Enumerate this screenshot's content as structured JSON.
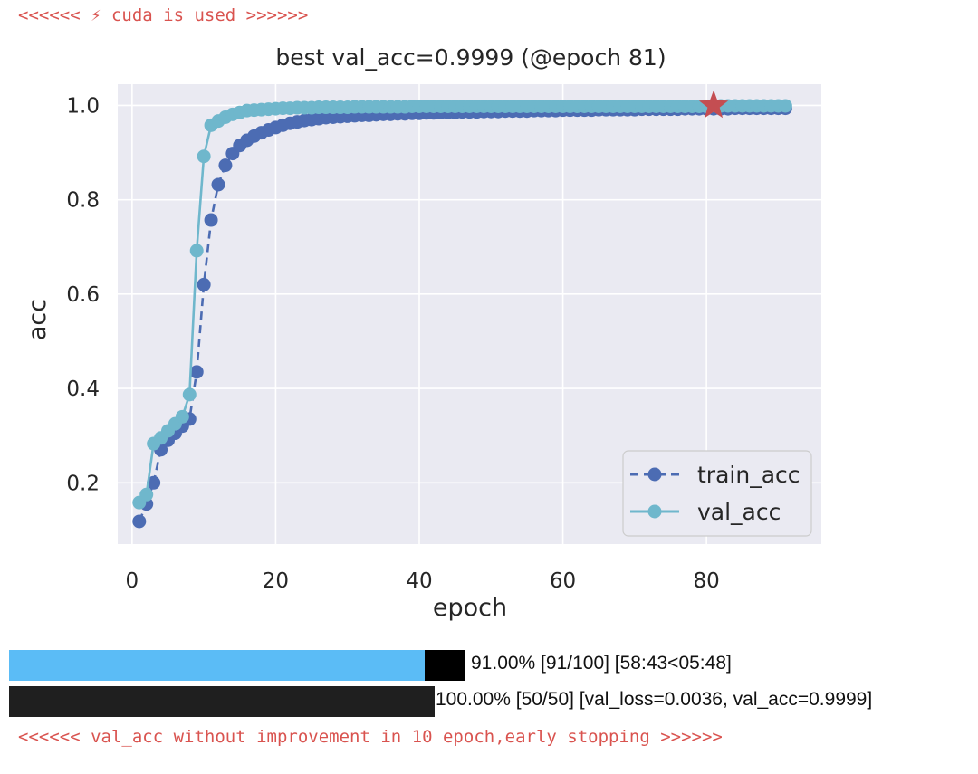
{
  "messages": {
    "top": "<<<<<< ⚡ cuda is used >>>>>>",
    "bottom": "<<<<<< val_acc without improvement in 10 epoch,early stopping >>>>>>"
  },
  "progress": [
    {
      "fraction": 0.91,
      "text": "91.00% [91/100] [58:43<05:48]"
    },
    {
      "fraction": 1.0,
      "text": "100.00% [50/50] [val_loss=0.0036, val_acc=0.9999]"
    }
  ],
  "colors": {
    "train": "#4c6cb3",
    "val": "#6fb7cc",
    "best_marker": "#c44e52",
    "plot_bg": "#eaeaf2",
    "grid": "#ffffff"
  },
  "chart_data": {
    "type": "line",
    "title": "best val_acc=0.9999 (@epoch 81)",
    "xlabel": "epoch",
    "ylabel": "acc",
    "xlim": [
      -2,
      96
    ],
    "ylim": [
      0.07,
      1.045
    ],
    "xticks": [
      0,
      20,
      40,
      60,
      80
    ],
    "yticks": [
      0.2,
      0.4,
      0.6,
      0.8,
      1.0
    ],
    "grid": true,
    "legend_position": "lower-right",
    "series": [
      {
        "name": "train_acc",
        "style": "dashed",
        "x": [
          1,
          2,
          3,
          4,
          5,
          6,
          7,
          8,
          9,
          10,
          11,
          12,
          13,
          14,
          15,
          16,
          17,
          18,
          19,
          20,
          21,
          22,
          23,
          24,
          25,
          26,
          27,
          28,
          29,
          30,
          31,
          32,
          33,
          34,
          35,
          36,
          37,
          38,
          39,
          40,
          41,
          42,
          43,
          44,
          45,
          46,
          47,
          48,
          49,
          50,
          51,
          52,
          53,
          54,
          55,
          56,
          57,
          58,
          59,
          60,
          61,
          62,
          63,
          64,
          65,
          66,
          67,
          68,
          69,
          70,
          71,
          72,
          73,
          74,
          75,
          76,
          77,
          78,
          79,
          80,
          81,
          82,
          83,
          84,
          85,
          86,
          87,
          88,
          89,
          90,
          91
        ],
        "y": [
          0.118,
          0.155,
          0.2,
          0.27,
          0.29,
          0.305,
          0.32,
          0.335,
          0.435,
          0.62,
          0.757,
          0.832,
          0.873,
          0.898,
          0.915,
          0.926,
          0.935,
          0.942,
          0.948,
          0.953,
          0.958,
          0.962,
          0.965,
          0.968,
          0.97,
          0.972,
          0.974,
          0.975,
          0.976,
          0.977,
          0.978,
          0.979,
          0.979,
          0.98,
          0.981,
          0.981,
          0.982,
          0.982,
          0.983,
          0.983,
          0.984,
          0.984,
          0.985,
          0.985,
          0.985,
          0.986,
          0.986,
          0.986,
          0.987,
          0.987,
          0.987,
          0.988,
          0.988,
          0.988,
          0.988,
          0.989,
          0.989,
          0.989,
          0.989,
          0.99,
          0.99,
          0.99,
          0.99,
          0.99,
          0.991,
          0.991,
          0.991,
          0.991,
          0.991,
          0.991,
          0.992,
          0.992,
          0.992,
          0.992,
          0.992,
          0.992,
          0.993,
          0.993,
          0.993,
          0.993,
          0.993,
          0.993,
          0.993,
          0.994,
          0.994,
          0.994,
          0.994,
          0.994,
          0.994,
          0.994,
          0.994
        ]
      },
      {
        "name": "val_acc",
        "style": "solid",
        "x": [
          1,
          2,
          3,
          4,
          5,
          6,
          7,
          8,
          9,
          10,
          11,
          12,
          13,
          14,
          15,
          16,
          17,
          18,
          19,
          20,
          21,
          22,
          23,
          24,
          25,
          26,
          27,
          28,
          29,
          30,
          31,
          32,
          33,
          34,
          35,
          36,
          37,
          38,
          39,
          40,
          41,
          42,
          43,
          44,
          45,
          46,
          47,
          48,
          49,
          50,
          51,
          52,
          53,
          54,
          55,
          56,
          57,
          58,
          59,
          60,
          61,
          62,
          63,
          64,
          65,
          66,
          67,
          68,
          69,
          70,
          71,
          72,
          73,
          74,
          75,
          76,
          77,
          78,
          79,
          80,
          81,
          82,
          83,
          84,
          85,
          86,
          87,
          88,
          89,
          90,
          91
        ],
        "y": [
          0.158,
          0.175,
          0.283,
          0.295,
          0.31,
          0.325,
          0.34,
          0.387,
          0.692,
          0.892,
          0.958,
          0.967,
          0.975,
          0.981,
          0.985,
          0.989,
          0.99,
          0.991,
          0.992,
          0.993,
          0.994,
          0.994,
          0.995,
          0.995,
          0.995,
          0.996,
          0.996,
          0.996,
          0.996,
          0.996,
          0.997,
          0.997,
          0.997,
          0.997,
          0.997,
          0.997,
          0.997,
          0.997,
          0.998,
          0.998,
          0.998,
          0.998,
          0.998,
          0.998,
          0.998,
          0.998,
          0.998,
          0.998,
          0.998,
          0.998,
          0.998,
          0.998,
          0.998,
          0.998,
          0.998,
          0.998,
          0.998,
          0.998,
          0.998,
          0.998,
          0.998,
          0.998,
          0.998,
          0.998,
          0.998,
          0.998,
          0.998,
          0.998,
          0.998,
          0.998,
          0.998,
          0.998,
          0.998,
          0.998,
          0.998,
          0.998,
          0.998,
          0.998,
          0.998,
          0.998,
          0.9999,
          0.999,
          0.999,
          0.999,
          0.999,
          0.999,
          0.999,
          0.999,
          0.999,
          0.999,
          0.999
        ]
      }
    ],
    "best_point": {
      "x": 81,
      "y": 0.9999,
      "marker": "star"
    }
  }
}
